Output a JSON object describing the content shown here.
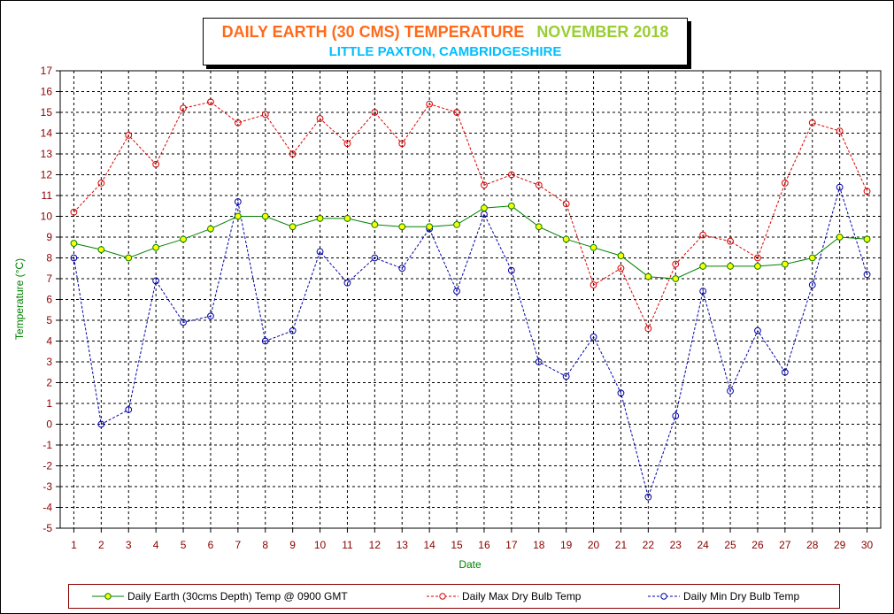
{
  "colors": {
    "earth": "#008000",
    "earth_marker": "#ffff00",
    "max": "#dd0000",
    "min": "#0000aa",
    "axis_label": "#8b0000",
    "title_main": "#ff6a1a",
    "title_month": "#9acd32",
    "subtitle": "#00bfff"
  },
  "chart_data": {
    "type": "line",
    "title": "DAILY EARTH (30 CMS) TEMPERATURE",
    "title_month": "NOVEMBER 2018",
    "subtitle": "LITTLE PAXTON, CAMBRIDGESHIRE",
    "xlabel": "Date",
    "ylabel": "Temperature (°C)",
    "ylim": [
      -5,
      17
    ],
    "grid": true,
    "legend_position": "bottom",
    "x": [
      1,
      2,
      3,
      4,
      5,
      6,
      7,
      8,
      9,
      10,
      11,
      12,
      13,
      14,
      15,
      16,
      17,
      18,
      19,
      20,
      21,
      22,
      23,
      24,
      25,
      26,
      27,
      28,
      29,
      30
    ],
    "yticks": [
      -5,
      -4,
      -3,
      -2,
      -1,
      0,
      1,
      2,
      3,
      4,
      5,
      6,
      7,
      8,
      9,
      10,
      11,
      12,
      13,
      14,
      15,
      16,
      17
    ],
    "series": [
      {
        "name": "Daily Earth (30cms Depth) Temp @ 0900 GMT",
        "key": "earth",
        "values": [
          8.7,
          8.4,
          8.0,
          8.5,
          8.9,
          9.4,
          10.0,
          10.0,
          9.5,
          9.9,
          9.9,
          9.6,
          9.5,
          9.5,
          9.6,
          10.4,
          10.5,
          9.5,
          8.9,
          8.5,
          8.1,
          7.1,
          7.0,
          7.6,
          7.6,
          7.6,
          7.7,
          8.0,
          9.0,
          8.9
        ]
      },
      {
        "name": "Daily Max Dry Bulb Temp",
        "key": "max",
        "values": [
          10.2,
          11.6,
          13.9,
          12.5,
          15.2,
          15.5,
          14.5,
          14.9,
          13.0,
          14.7,
          13.5,
          15.0,
          13.5,
          15.4,
          15.0,
          11.5,
          12.0,
          11.5,
          10.6,
          6.7,
          7.5,
          4.6,
          7.7,
          9.1,
          8.8,
          8.0,
          11.6,
          14.5,
          14.1,
          11.2
        ]
      },
      {
        "name": "Daily Min Dry Bulb Temp",
        "key": "min",
        "values": [
          8.0,
          0.0,
          0.7,
          6.9,
          4.9,
          5.2,
          10.7,
          4.0,
          4.5,
          8.3,
          6.8,
          8.0,
          7.5,
          9.4,
          6.4,
          10.1,
          7.4,
          3.0,
          2.3,
          4.2,
          1.5,
          -3.5,
          0.4,
          6.4,
          1.6,
          4.5,
          2.5,
          6.7,
          11.4,
          7.2
        ]
      }
    ]
  }
}
